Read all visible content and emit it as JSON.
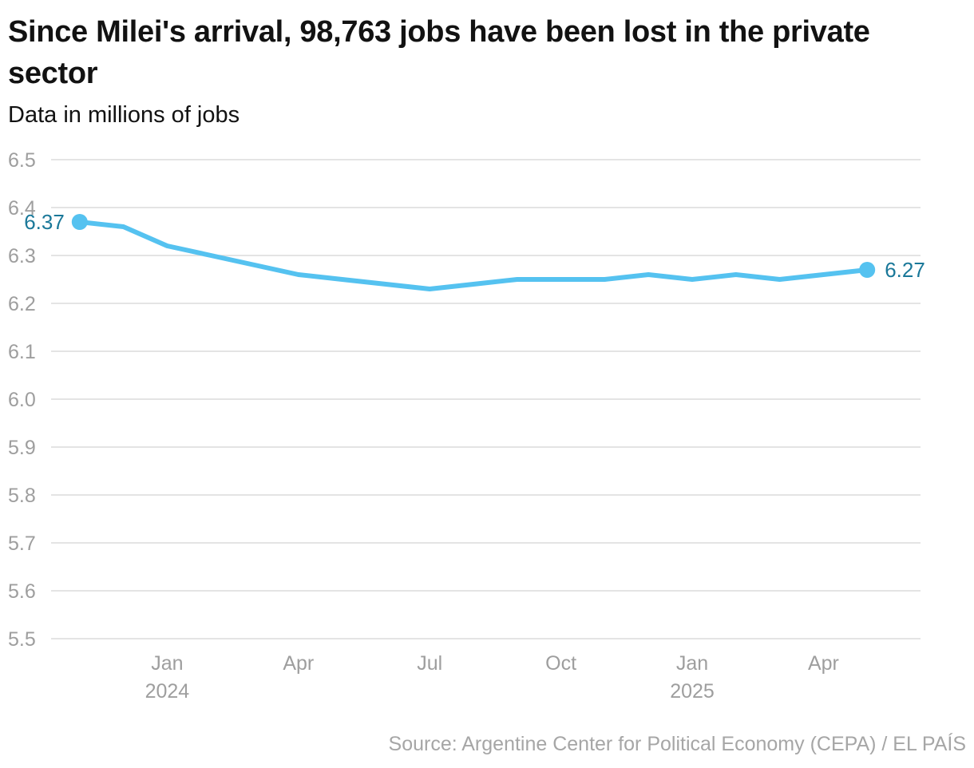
{
  "title": "Since Milei's arrival, 98,763 jobs have been lost in the private sector",
  "subtitle": "Data in millions of jobs",
  "source": "Source: Argentine Center for Political Economy (CEPA) / EL PAÍS",
  "colors": {
    "line": "#55c2f0",
    "label": "#1a7899",
    "grid": "#dcdcdc",
    "tick": "#9e9e9e"
  },
  "chart_data": {
    "type": "line",
    "title": "Since Milei's arrival, 98,763 jobs have been lost in the private sector",
    "subtitle": "Data in millions of jobs",
    "ylabel": "",
    "xlabel": "",
    "ylim": [
      5.5,
      6.5
    ],
    "yticks": [
      6.5,
      6.4,
      6.3,
      6.2,
      6.1,
      6.0,
      5.9,
      5.8,
      5.7,
      5.6,
      5.5
    ],
    "ytick_labels": [
      "6.5",
      "6.4",
      "6.3",
      "6.2",
      "6.1",
      "6.0",
      "5.9",
      "5.8",
      "5.7",
      "5.6",
      "5.5"
    ],
    "xlim": [
      "2023-10",
      "2025-06"
    ],
    "xticks": [
      {
        "date": "2024-01",
        "label": "Jan",
        "year": "2024"
      },
      {
        "date": "2024-04",
        "label": "Apr",
        "year": ""
      },
      {
        "date": "2024-07",
        "label": "Jul",
        "year": ""
      },
      {
        "date": "2024-10",
        "label": "Oct",
        "year": ""
      },
      {
        "date": "2025-01",
        "label": "Jan",
        "year": "2025"
      },
      {
        "date": "2025-04",
        "label": "Apr",
        "year": ""
      }
    ],
    "grid": true,
    "series": [
      {
        "x": [
          "2023-11",
          "2023-12",
          "2024-01",
          "2024-02",
          "2024-03",
          "2024-04",
          "2024-05",
          "2024-06",
          "2024-07",
          "2024-08",
          "2024-09",
          "2024-10",
          "2024-11",
          "2024-12",
          "2025-01",
          "2025-02",
          "2025-03",
          "2025-04",
          "2025-05"
        ],
        "values": [
          6.37,
          6.36,
          6.32,
          6.3,
          6.28,
          6.26,
          6.25,
          6.24,
          6.23,
          6.24,
          6.25,
          6.25,
          6.25,
          6.26,
          6.25,
          6.26,
          6.25,
          6.26,
          6.27
        ]
      }
    ],
    "annotations": [
      {
        "point": "first",
        "text": "6.37",
        "side": "left"
      },
      {
        "point": "last",
        "text": "6.27",
        "side": "right"
      }
    ]
  }
}
